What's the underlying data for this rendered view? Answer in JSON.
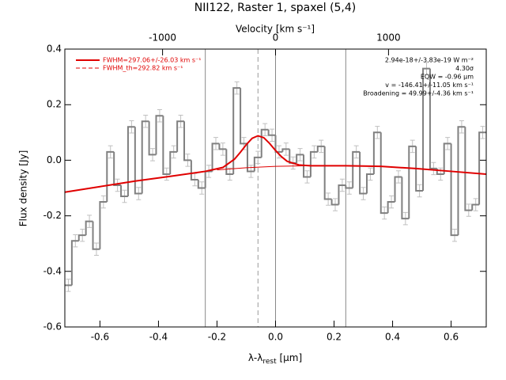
{
  "chart_data": {
    "type": "step",
    "title": "NII122, Raster 1, spaxel (5,4)",
    "xlabel": {
      "main": "λ-λ",
      "sub": "rest",
      "unit": " [µm]"
    },
    "x2label": "Velocity [km s⁻¹]",
    "ylabel": "Flux density [Jy]",
    "xlim": [
      -0.72,
      0.72
    ],
    "ylim": [
      -0.6,
      0.4
    ],
    "x2lim": [
      -1865,
      1865
    ],
    "xticks": [
      -0.6,
      -0.4,
      -0.2,
      {
        "value": 0,
        "label": "0.0"
      },
      0.2,
      0.4,
      0.6
    ],
    "yticks": [
      -0.6,
      -0.4,
      -0.2,
      {
        "value": 0,
        "label": "0.0"
      },
      0.2,
      0.4
    ],
    "x2ticks": [
      -1000,
      0,
      1000
    ],
    "x": [
      -0.708,
      -0.684,
      -0.66,
      -0.636,
      -0.612,
      -0.588,
      -0.564,
      -0.54,
      -0.516,
      -0.492,
      -0.468,
      -0.444,
      -0.42,
      -0.396,
      -0.372,
      -0.348,
      -0.324,
      -0.3,
      -0.276,
      -0.252,
      -0.228,
      -0.204,
      -0.18,
      -0.156,
      -0.132,
      -0.108,
      -0.084,
      -0.06,
      -0.036,
      -0.012,
      0.012,
      0.036,
      0.06,
      0.084,
      0.108,
      0.132,
      0.156,
      0.18,
      0.204,
      0.228,
      0.252,
      0.276,
      0.3,
      0.324,
      0.348,
      0.372,
      0.396,
      0.42,
      0.444,
      0.468,
      0.492,
      0.516,
      0.54,
      0.564,
      0.588,
      0.612,
      0.636,
      0.66,
      0.684,
      0.708
    ],
    "values": [
      -0.45,
      -0.29,
      -0.27,
      -0.22,
      -0.32,
      -0.15,
      0.03,
      -0.09,
      -0.13,
      0.12,
      -0.12,
      0.14,
      0.02,
      0.16,
      -0.05,
      0.03,
      0.14,
      0.0,
      -0.07,
      -0.1,
      -0.04,
      0.06,
      0.04,
      -0.05,
      0.26,
      0.06,
      -0.04,
      0.01,
      0.11,
      0.09,
      0.03,
      0.04,
      -0.01,
      0.02,
      -0.06,
      0.03,
      0.05,
      -0.14,
      -0.16,
      -0.09,
      -0.1,
      0.03,
      -0.12,
      -0.05,
      0.1,
      -0.19,
      -0.15,
      -0.06,
      -0.21,
      0.05,
      -0.11,
      0.33,
      -0.03,
      -0.05,
      0.06,
      -0.27,
      0.12,
      -0.18,
      -0.16,
      0.1
    ],
    "yerr": 0.022,
    "color": "#808080",
    "error_color": "#c0c0c0",
    "fit": {
      "name": "FWHM=297.06+/-26.03 km s⁻¹",
      "color": "#e00000",
      "x": [
        -0.72,
        -0.6,
        -0.48,
        -0.36,
        -0.24,
        -0.18,
        -0.14,
        -0.12,
        -0.1,
        -0.08,
        -0.06,
        -0.04,
        -0.02,
        0.0,
        0.02,
        0.04,
        0.08,
        0.12,
        0.24,
        0.36,
        0.48,
        0.6,
        0.72
      ],
      "values": [
        -0.115,
        -0.095,
        -0.075,
        -0.058,
        -0.04,
        -0.026,
        0.004,
        0.029,
        0.056,
        0.079,
        0.088,
        0.081,
        0.06,
        0.035,
        0.013,
        -0.004,
        -0.017,
        -0.02,
        -0.02,
        -0.022,
        -0.03,
        -0.04,
        -0.05
      ]
    },
    "baseline": {
      "color": "#e00000",
      "x": [
        -0.2,
        -0.1,
        0.0,
        0.1
      ],
      "values": [
        -0.035,
        -0.027,
        -0.022,
        -0.02
      ]
    },
    "fwhm_th_label": "FWHM_th=292.82 km s⁻¹",
    "vlines": [
      -0.24,
      0,
      0.24
    ],
    "dashed_vline": -0.06,
    "annotations": [
      "2.94e-18+/-3.83e-19 W m⁻²",
      "4.30σ",
      "EQW = -0.96 µm",
      "v = -146.41+/-11.05 km s⁻¹",
      "Broadening = 49.99+/-4.36 km s⁻¹"
    ]
  }
}
